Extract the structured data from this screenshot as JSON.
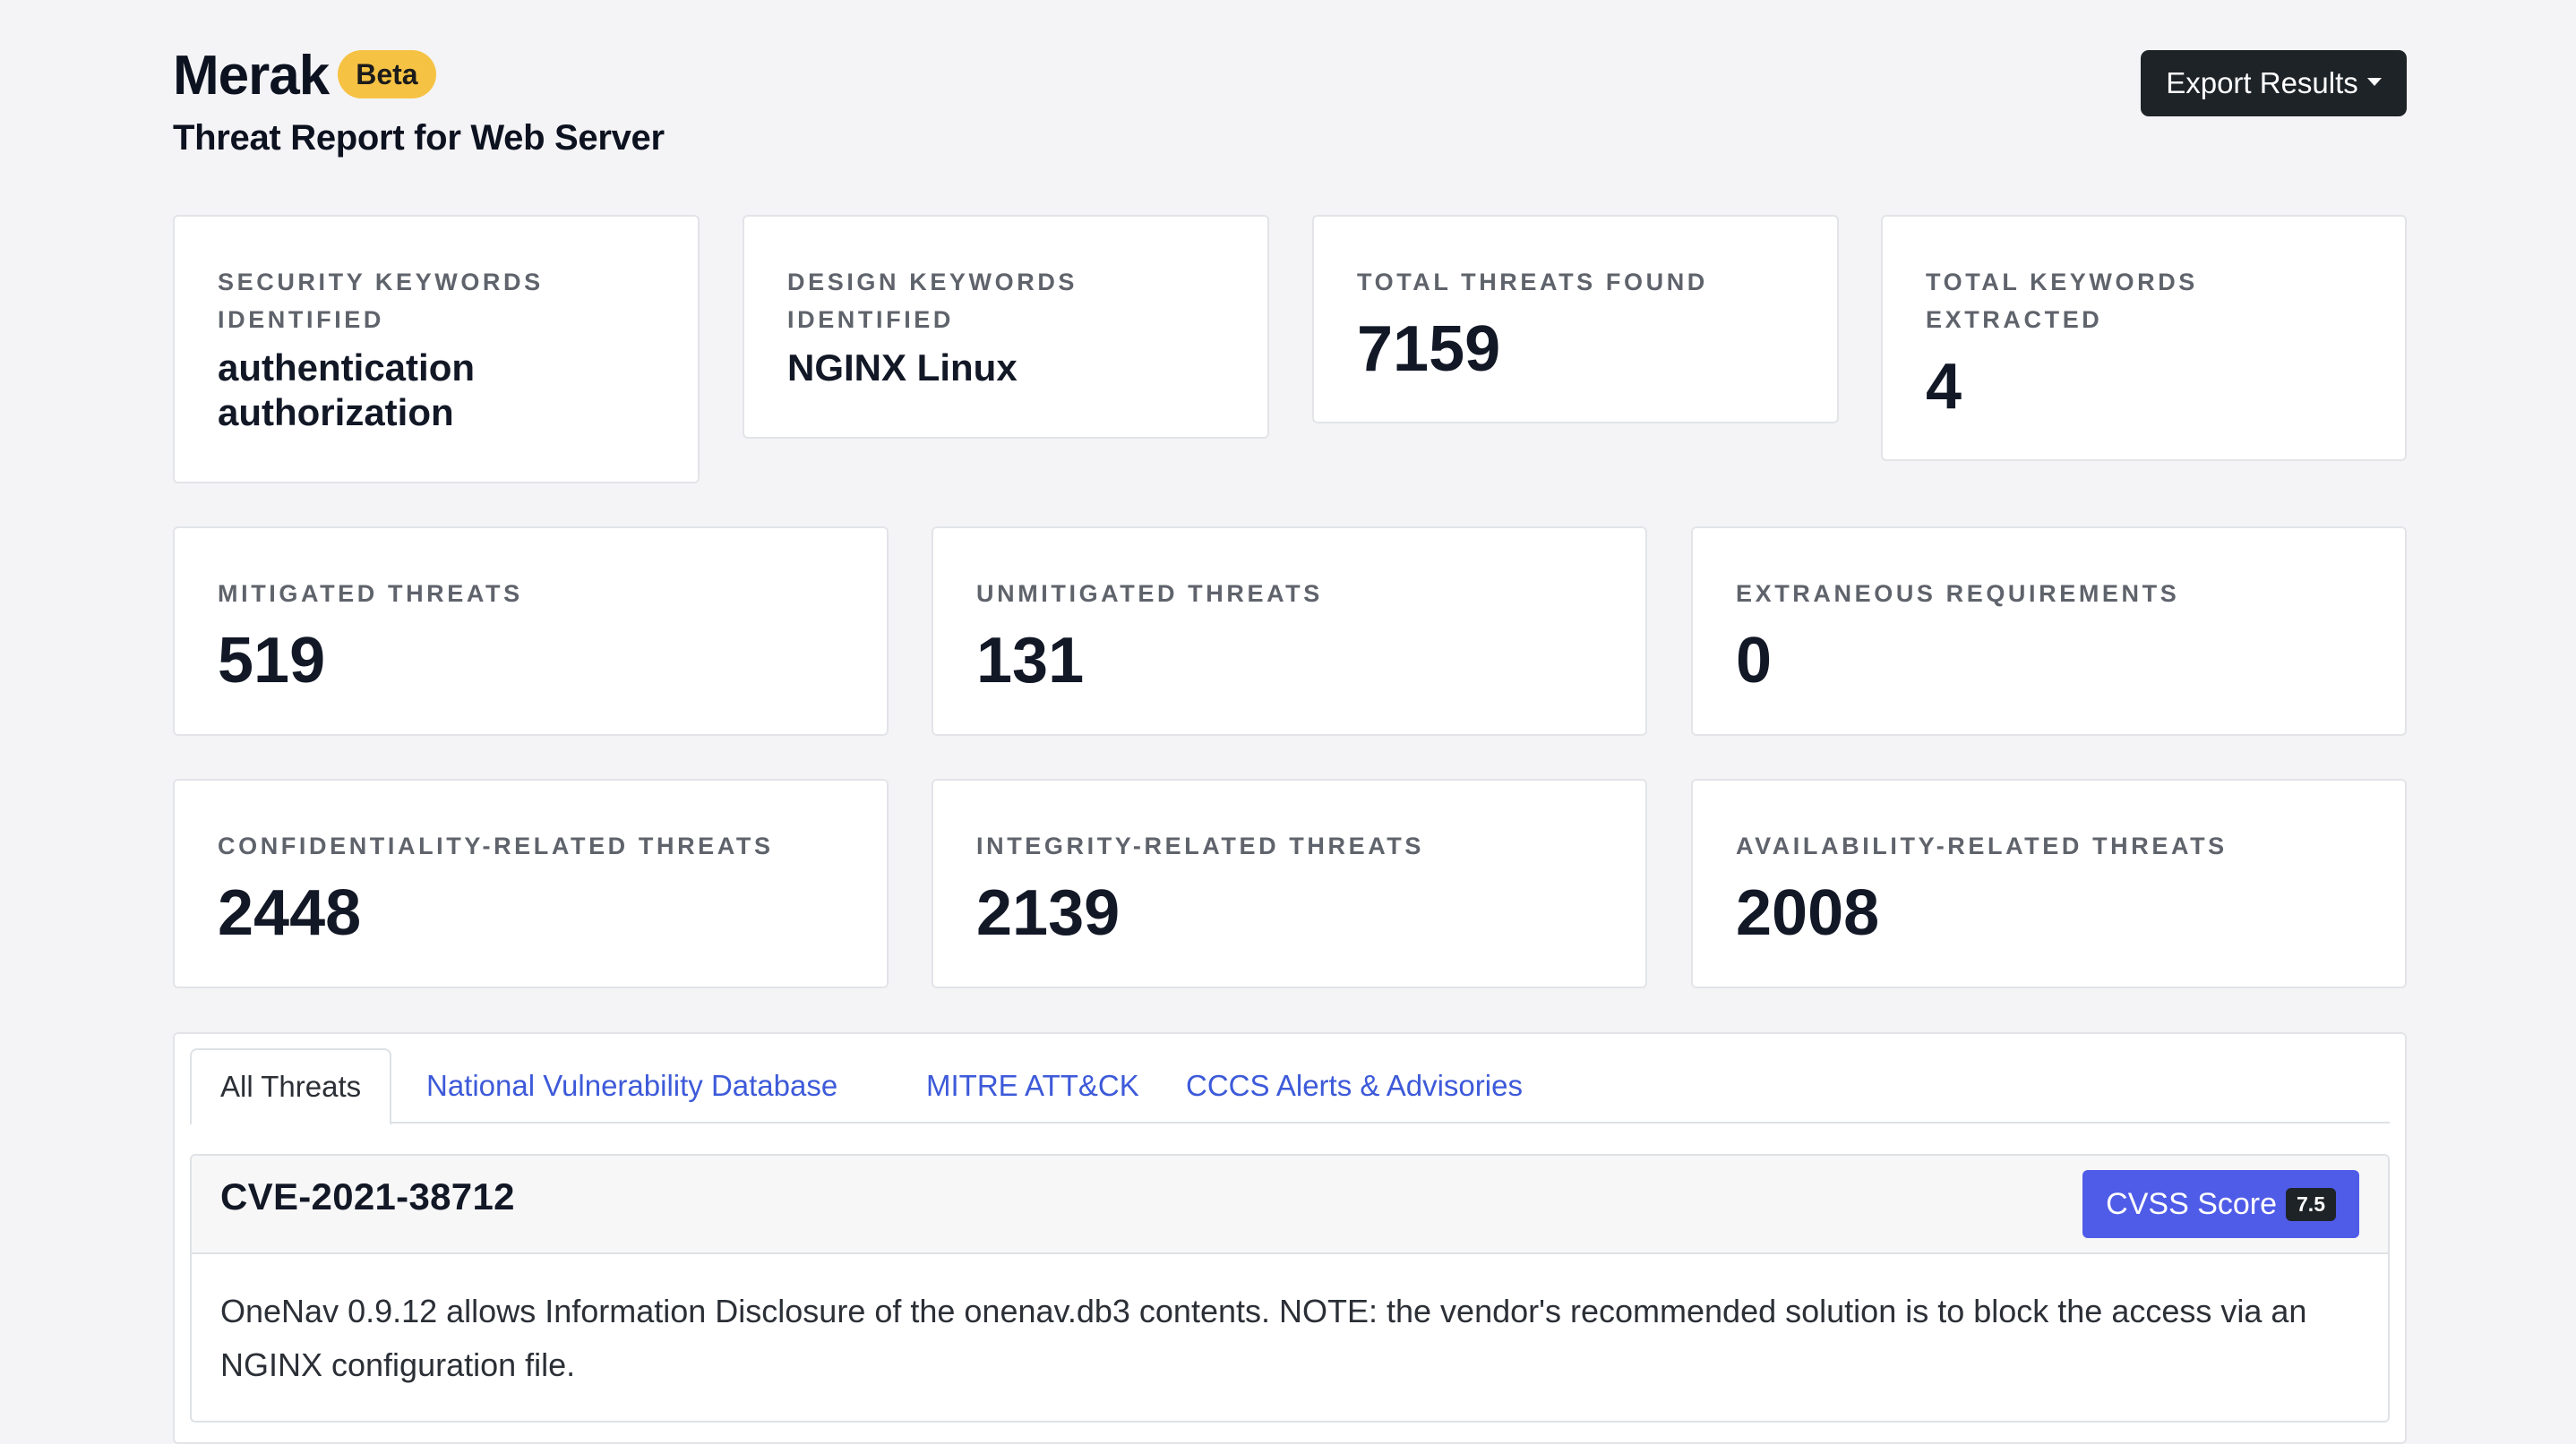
{
  "header": {
    "brand": "Merak",
    "badge": "Beta",
    "subtitle": "Threat Report for Web Server",
    "export_label": "Export Results"
  },
  "summary": {
    "security_keywords": {
      "label": "Security Keywords Identified",
      "value": "authentication authorization"
    },
    "design_keywords": {
      "label": "Design Keywords Identified",
      "value": "NGINX Linux"
    },
    "total_threats": {
      "label": "Total Threats Found",
      "value": "7159"
    },
    "total_keywords": {
      "label": "Total Keywords Extracted",
      "value": "4"
    }
  },
  "mitigation": {
    "mitigated": {
      "label": "Mitigated Threats",
      "value": "519"
    },
    "unmitigated": {
      "label": "Unmitigated Threats",
      "value": "131"
    },
    "extraneous": {
      "label": "Extraneous Requirements",
      "value": "0"
    }
  },
  "cia": {
    "confidentiality": {
      "label": "Confidentiality-Related Threats",
      "value": "2448"
    },
    "integrity": {
      "label": "Integrity-Related Threats",
      "value": "2139"
    },
    "availability": {
      "label": "Availability-Related Threats",
      "value": "2008"
    }
  },
  "tabs": [
    {
      "label": "All Threats",
      "active": true
    },
    {
      "label": "National Vulnerability Database",
      "active": false
    },
    {
      "label": "MITRE ATT&CK",
      "active": false
    },
    {
      "label": "CCCS Alerts & Advisories",
      "active": false
    }
  ],
  "threat": {
    "id": "CVE-2021-38712",
    "cvss_label": "CVSS Score",
    "cvss_value": "7.5",
    "description": "OneNav 0.9.12 allows Information Disclosure of the onenav.db3 contents. NOTE: the vendor's recommended solution is to block the access via an NGINX configuration file."
  },
  "colors": {
    "background": "#f4f4f6",
    "badge": "#f6c243",
    "primary_button": "#4f5ce8",
    "dark_button": "#1e2328",
    "link": "#3d5ad9"
  }
}
